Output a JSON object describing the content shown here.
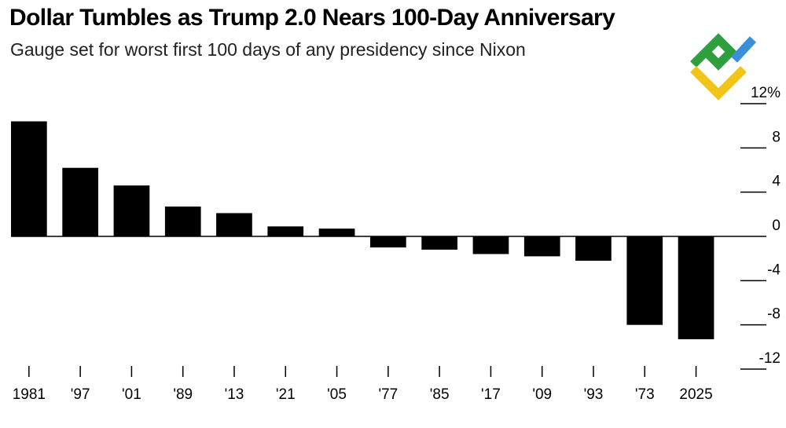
{
  "header": {
    "title": "Dollar Tumbles as Trump 2.0 Nears 100-Day Anniversary",
    "subtitle": "Gauge set for worst first 100 days of any presidency since Nixon"
  },
  "logo": {
    "icon": "brand-logo-icon",
    "colors": [
      "#2e9e3f",
      "#3a8fd9",
      "#f2c417"
    ]
  },
  "chart_data": {
    "type": "bar",
    "title": "Dollar Tumbles as Trump 2.0 Nears 100-Day Anniversary",
    "subtitle": "Gauge set for worst first 100 days of any presidency since Nixon",
    "categories": [
      "1981",
      "'97",
      "'01",
      "'89",
      "'13",
      "'21",
      "'05",
      "'77",
      "'85",
      "'17",
      "'09",
      "'93",
      "'73",
      "2025"
    ],
    "values": [
      10.4,
      6.2,
      4.6,
      2.7,
      2.1,
      0.9,
      0.7,
      -1.0,
      -1.2,
      -1.6,
      -1.8,
      -2.2,
      -8.0,
      -9.3
    ],
    "ylim": [
      -12,
      12
    ],
    "yticks": [
      12,
      8,
      4,
      0,
      -4,
      -8,
      -12
    ],
    "ytick_labels": [
      "12%",
      "8",
      "4",
      "0",
      "-4",
      "-8",
      "-12"
    ],
    "xlabel": "",
    "ylabel": "",
    "bar_color": "#000000",
    "grid": false,
    "y_axis_side": "right"
  }
}
